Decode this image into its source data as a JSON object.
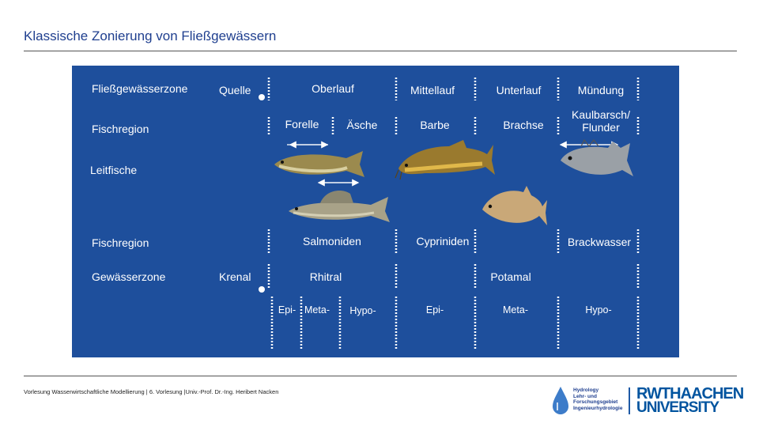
{
  "title": "Klassische Zonierung von Fließgewässern",
  "rows": {
    "fliessgewaesserzone": "Fließgewässerzone",
    "fischregion1": "Fischregion",
    "leitfische": "Leitfische",
    "fischregion2": "Fischregion",
    "gewaesserzone": "Gewässerzone"
  },
  "zones": {
    "quelle": "Quelle",
    "oberlauf": "Oberlauf",
    "mittellauf": "Mittellauf",
    "unterlauf": "Unterlauf",
    "muendung": "Mündung"
  },
  "fish_regions": {
    "forelle": "Forelle",
    "aesche": "Äsche",
    "barbe": "Barbe",
    "brachse": "Brachse",
    "kaulbarsch_line1": "Kaulbarsch/",
    "kaulbarsch_line2": "Flunder"
  },
  "families": {
    "salmoniden": "Salmoniden",
    "cypriniden": "Cypriniden",
    "brackwasser": "Brackwasser"
  },
  "zones2": {
    "krenal": "Krenal",
    "rhitral": "Rhitral",
    "potamal": "Potamal"
  },
  "subzones": {
    "epi1": "Epi-",
    "meta1": "Meta-",
    "hypo1": "Hypo-",
    "epi2": "Epi-",
    "meta2": "Meta-",
    "hypo2": "Hypo-"
  },
  "footer": "Vorlesung Wasserwirtschaftliche Modellierung | 6. Vorlesung |Univ.-Prof. Dr.-Ing. Heribert Nacken",
  "logo_hydrology": {
    "line1": "Hydrology",
    "line2": "Lehr- und",
    "line3": "Forschungsgebiet",
    "line4": "Ingenieurhydrologie"
  },
  "logo_rwth": {
    "line1": "RWTHAACHEN",
    "line2": "UNIVERSITY"
  },
  "colors": {
    "panel": "#1e4f9c",
    "title": "#1f3f8f",
    "rwth": "#00549f"
  }
}
